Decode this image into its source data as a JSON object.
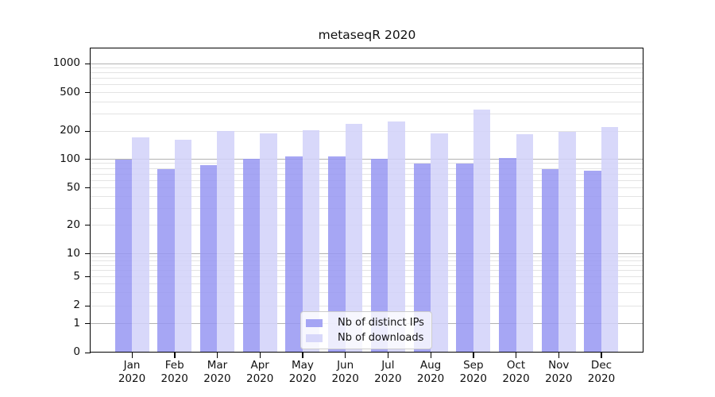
{
  "chart_data": {
    "type": "bar",
    "title": "metaseqR 2020",
    "categories": [
      "Jan",
      "Feb",
      "Mar",
      "Apr",
      "May",
      "Jun",
      "Jul",
      "Aug",
      "Sep",
      "Oct",
      "Nov",
      "Dec"
    ],
    "x_tick_year": "2020",
    "series": [
      {
        "name": "Nb of distinct IPs",
        "color": "#9696f2",
        "values": [
          100,
          78,
          87,
          101,
          108,
          107,
          101,
          90,
          90,
          103,
          78,
          75
        ]
      },
      {
        "name": "Nb of downloads",
        "color": "#d1d1f9",
        "values": [
          172,
          161,
          201,
          188,
          204,
          235,
          253,
          190,
          335,
          186,
          195,
          221
        ]
      }
    ],
    "y_tick_values": [
      0,
      1,
      2,
      5,
      10,
      20,
      50,
      100,
      200,
      500,
      1000
    ],
    "y_tick_labels": [
      "0",
      "1",
      "2",
      "5",
      "10",
      "20",
      "50",
      "100",
      "200",
      "500",
      "1000"
    ],
    "ylim": [
      0,
      1400
    ],
    "xlabel": "",
    "ylabel": "",
    "scale": "log-like",
    "grid": "on",
    "legend_position": "bottom-center",
    "colors": {
      "bar_distinct_ips": "#9696f2",
      "bar_downloads": "#d1d1f9",
      "grid_major": "#b2b2b2",
      "grid_minor": "#e3e3e3",
      "axis": "#000000",
      "background": "#ffffff"
    }
  }
}
